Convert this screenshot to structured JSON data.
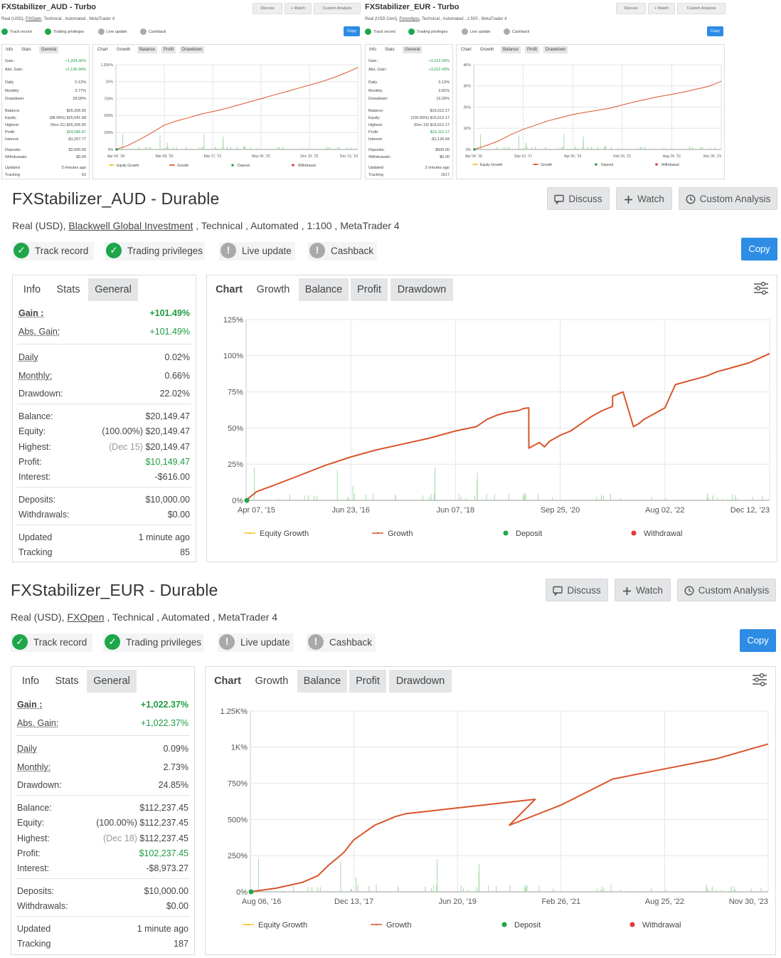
{
  "accounts": [
    {
      "id": "aud_turbo",
      "title": "FXStabilizer_AUD - Turbo",
      "subtitle_prefix": "Real (USD), ",
      "broker": "FXOpen",
      "subtitle_suffix": ", Technical , Automated , MetaTrader 4",
      "buttons": {
        "discuss": "Discuss",
        "watch": "+ Watch",
        "custom": "Custom Analysis",
        "copy": "Copy"
      },
      "badges": [
        "Track record",
        "Trading privileges",
        "Live update",
        "Cashback"
      ],
      "tabs": [
        "Info",
        "Stats",
        "General"
      ],
      "chart_tabs": [
        "Chart",
        "Growth",
        "Balance",
        "Profit",
        "Drawdown"
      ],
      "stats": [
        {
          "label": "Gain :",
          "value": "+1,204.36%"
        },
        {
          "label": "Abs. Gain:",
          "value": "+1,136.34%"
        },
        {
          "label": "Daily",
          "value": "0.12%"
        },
        {
          "label": "Monthly:",
          "value": "3.77%"
        },
        {
          "label": "Drawdown:",
          "value": "29.05%"
        },
        {
          "label": "Balance:",
          "value": "$26,206.55"
        },
        {
          "label": "Equity:",
          "value": "(98.99%) $25,941.68"
        },
        {
          "label": "Highest:",
          "value": "(Nov 21) $26,206.55"
        },
        {
          "label": "Profit:",
          "value": "$24,086.87"
        },
        {
          "label": "Interest:",
          "value": "-$1,257.77"
        },
        {
          "label": "Deposits:",
          "value": "$2,000.00"
        },
        {
          "label": "Withdrawals:",
          "value": "$0.00"
        },
        {
          "label": "Updated",
          "value": "3 minutes ago"
        },
        {
          "label": "Tracking",
          "value": "63"
        }
      ],
      "chart_data": {
        "type": "line",
        "yticks": [
          "0%",
          "250%",
          "500%",
          "750%",
          "1K%",
          "1.25K%"
        ],
        "ylim": [
          0,
          1250
        ],
        "xticks": [
          "Apr 04, '18",
          "Mar 09, '20",
          "Mar 17, '21",
          "May 05, '22",
          "Dec 20, '22",
          "Dec 13, '23"
        ],
        "legend": [
          "Equity Growth",
          "Growth",
          "Deposit",
          "Withdrawal"
        ],
        "series": [
          {
            "name": "Growth",
            "x": [
              0,
              0.05,
              0.1,
              0.15,
              0.2,
              0.25,
              0.3,
              0.35,
              0.4,
              0.45,
              0.5,
              0.55,
              0.6,
              0.65,
              0.7,
              0.75,
              0.8,
              0.85,
              0.9,
              0.95,
              1.0
            ],
            "values": [
              0,
              60,
              150,
              250,
              360,
              420,
              470,
              520,
              560,
              600,
              650,
              700,
              750,
              800,
              850,
              900,
              950,
              1000,
              1060,
              1130,
              1210
            ]
          }
        ]
      }
    },
    {
      "id": "eur_turbo",
      "title": "FXStabilizer_EUR - Turbo",
      "subtitle_prefix": "Real (USD Cent), ",
      "broker": "Forex4you",
      "subtitle_suffix": ", Technical , Automated , 1:500 , MetaTrader 4",
      "buttons": {
        "discuss": "Discuss",
        "watch": "+ Watch",
        "custom": "Custom Analysis",
        "copy": "Copy"
      },
      "badges": [
        "Track record",
        "Trading privileges",
        "Live update",
        "Cashback"
      ],
      "tabs": [
        "Info",
        "Stats",
        "General"
      ],
      "chart_tabs": [
        "Chart",
        "Growth",
        "Balance",
        "Profit",
        "Drawdown"
      ],
      "stats": [
        {
          "label": "Gain :",
          "value": "+3,222.43%"
        },
        {
          "label": "Abs. Gain:",
          "value": "+3,222.43%"
        },
        {
          "label": "Daily",
          "value": "0.12%"
        },
        {
          "label": "Monthly:",
          "value": "3.81%"
        },
        {
          "label": "Drawdown:",
          "value": "13.26%"
        },
        {
          "label": "Balance:",
          "value": "$16,612.17"
        },
        {
          "label": "Equity:",
          "value": "(100.00%) $16,612.17"
        },
        {
          "label": "Highest:",
          "value": "(Dec 19) $16,612.17"
        },
        {
          "label": "Profit:",
          "value": "$16,112.17"
        },
        {
          "label": "Interest:",
          "value": "-$1,126.84"
        },
        {
          "label": "Deposits:",
          "value": "$500.00"
        },
        {
          "label": "Withdrawals:",
          "value": "$0.00"
        },
        {
          "label": "Updated",
          "value": "2 minutes ago"
        },
        {
          "label": "Tracking",
          "value": "1617"
        }
      ],
      "chart_data": {
        "type": "line",
        "yticks": [
          "0%",
          "1K%",
          "2K%",
          "3K%",
          "4K%"
        ],
        "ylim": [
          0,
          4000
        ],
        "xticks": [
          "Apr 04, '16",
          "Sep 10, '17",
          "Apr 05, '19",
          "Feb 16, '21",
          "Aug 24, '22",
          "Nov 30, '23"
        ],
        "legend": [
          "Equity Growth",
          "Growth",
          "Deposit",
          "Withdrawal"
        ],
        "series": [
          {
            "name": "Growth",
            "x": [
              0,
              0.05,
              0.1,
              0.15,
              0.2,
              0.25,
              0.3,
              0.35,
              0.4,
              0.45,
              0.5,
              0.55,
              0.6,
              0.65,
              0.7,
              0.75,
              0.8,
              0.85,
              0.9,
              0.95,
              1.0
            ],
            "values": [
              0,
              180,
              400,
              700,
              950,
              1150,
              1350,
              1500,
              1650,
              1750,
              1850,
              1950,
              2100,
              2250,
              2380,
              2500,
              2600,
              2720,
              2850,
              2980,
              3220
            ]
          }
        ]
      }
    },
    {
      "id": "aud_durable",
      "title": "FXStabilizer_AUD - Durable",
      "subtitle_prefix": "Real (USD), ",
      "broker": "Blackwell Global Investment",
      "subtitle_suffix": " , Technical , Automated , 1:100 , MetaTrader 4",
      "buttons": {
        "discuss": "Discuss",
        "watch": "Watch",
        "custom": "Custom Analysis",
        "copy": "Copy"
      },
      "badges": [
        "Track record",
        "Trading privileges",
        "Live update",
        "Cashback"
      ],
      "tabs": [
        "Info",
        "Stats",
        "General"
      ],
      "chart_tabs": [
        "Chart",
        "Growth",
        "Balance",
        "Profit",
        "Drawdown"
      ],
      "stats": {
        "gain": {
          "label": "Gain :",
          "value": "+101.49%"
        },
        "abs_gain": {
          "label": "Abs. Gain:",
          "value": "+101.49%"
        },
        "daily": {
          "label": "Daily",
          "value": "0.02%"
        },
        "monthly": {
          "label": "Monthly:",
          "value": "0.66%"
        },
        "drawdown": {
          "label": "Drawdown:",
          "value": "22.02%"
        },
        "balance": {
          "label": "Balance:",
          "value": "$20,149.47"
        },
        "equity": {
          "label": "Equity:",
          "pct": "(100.00%)",
          "value": "$20,149.47"
        },
        "highest": {
          "label": "Highest:",
          "date": "(Dec 15)",
          "value": "$20,149.47"
        },
        "profit": {
          "label": "Profit:",
          "value": "$10,149.47"
        },
        "interest": {
          "label": "Interest:",
          "value": "-$616.00"
        },
        "deposits": {
          "label": "Deposits:",
          "value": "$10,000.00"
        },
        "withdrawals": {
          "label": "Withdrawals:",
          "value": "$0.00"
        },
        "updated": {
          "label": "Updated",
          "value": "1 minute ago"
        },
        "tracking": {
          "label": "Tracking",
          "value": "85"
        }
      },
      "chart_data": {
        "type": "line",
        "title": "",
        "yticks": [
          "0%",
          "25%",
          "50%",
          "75%",
          "100%",
          "125%"
        ],
        "ylim": [
          0,
          125
        ],
        "xticks": [
          "Apr 07, '15",
          "Jun 23, '16",
          "Jun 07, '18",
          "Sep 25, '20",
          "Aug 02, '22",
          "Dec 12, '23"
        ],
        "legend": [
          "Equity Growth",
          "Growth",
          "Deposit",
          "Withdrawal"
        ],
        "series": [
          {
            "name": "Growth",
            "x": [
              0,
              0.02,
              0.05,
              0.1,
              0.15,
              0.2,
              0.25,
              0.3,
              0.35,
              0.4,
              0.44,
              0.46,
              0.48,
              0.5,
              0.52,
              0.53,
              0.54,
              0.5401,
              0.55,
              0.56,
              0.57,
              0.58,
              0.6,
              0.62,
              0.64,
              0.66,
              0.68,
              0.7,
              0.7001,
              0.72,
              0.74,
              0.75,
              0.76,
              0.78,
              0.8,
              0.82,
              0.85,
              0.88,
              0.9,
              0.93,
              0.96,
              1.0
            ],
            "values": [
              0,
              6,
              10,
              17,
              24,
              30,
              35,
              39,
              43,
              48,
              51,
              56,
              59,
              61,
              62,
              63.5,
              64,
              36,
              38,
              40,
              37,
              41,
              45,
              48,
              53,
              58,
              62,
              65,
              72,
              75,
              51,
              53,
              56,
              60,
              64,
              80,
              83,
              86,
              89,
              92,
              95,
              101.5
            ]
          }
        ]
      }
    },
    {
      "id": "eur_durable",
      "title": "FXStabilizer_EUR - Durable",
      "subtitle_prefix": "Real (USD), ",
      "broker": "FXOpen",
      "subtitle_suffix": " , Technical , Automated , MetaTrader 4",
      "buttons": {
        "discuss": "Discuss",
        "watch": "Watch",
        "custom": "Custom Analysis",
        "copy": "Copy"
      },
      "badges": [
        "Track record",
        "Trading privileges",
        "Live update",
        "Cashback"
      ],
      "tabs": [
        "Info",
        "Stats",
        "General"
      ],
      "chart_tabs": [
        "Chart",
        "Growth",
        "Balance",
        "Profit",
        "Drawdown"
      ],
      "stats": {
        "gain": {
          "label": "Gain :",
          "value": "+1,022.37%"
        },
        "abs_gain": {
          "label": "Abs. Gain:",
          "value": "+1,022.37%"
        },
        "daily": {
          "label": "Daily",
          "value": "0.09%"
        },
        "monthly": {
          "label": "Monthly:",
          "value": "2.73%"
        },
        "drawdown": {
          "label": "Drawdown:",
          "value": "24.85%"
        },
        "balance": {
          "label": "Balance:",
          "value": "$112,237.45"
        },
        "equity": {
          "label": "Equity:",
          "pct": "(100.00%)",
          "value": "$112,237.45"
        },
        "highest": {
          "label": "Highest:",
          "date": "(Dec 18)",
          "value": "$112,237.45"
        },
        "profit": {
          "label": "Profit:",
          "value": "$102,237.45"
        },
        "interest": {
          "label": "Interest:",
          "value": "-$8,973.27"
        },
        "deposits": {
          "label": "Deposits:",
          "value": "$10,000.00"
        },
        "withdrawals": {
          "label": "Withdrawals:",
          "value": "$0.00"
        },
        "updated": {
          "label": "Updated",
          "value": "1 minute ago"
        },
        "tracking": {
          "label": "Tracking",
          "value": "187"
        }
      },
      "chart_data": {
        "type": "line",
        "title": "",
        "yticks": [
          "0%",
          "250%",
          "500%",
          "750%",
          "1K%",
          "1.25K%"
        ],
        "ylim": [
          0,
          1250
        ],
        "xticks": [
          "Aug 06, '16",
          "Dec 13, '17",
          "Jun 20, '19",
          "Feb 26, '21",
          "Aug 25, '22",
          "Nov 30, '23"
        ],
        "legend": [
          "Equity Growth",
          "Growth",
          "Deposit",
          "Withdrawal"
        ],
        "series": [
          {
            "name": "Growth",
            "x": [
              0,
              0.05,
              0.1,
              0.13,
              0.15,
              0.18,
              0.2,
              0.22,
              0.24,
              0.26,
              0.28,
              0.3,
              0.35,
              0.4,
              0.45,
              0.5,
              0.55,
              0.5,
              0.6,
              0.7,
              0.8,
              0.9,
              1.0
            ],
            "values": [
              0,
              25,
              65,
              110,
              180,
              270,
              360,
              410,
              460,
              490,
              520,
              540,
              560,
              580,
              600,
              620,
              640,
              460,
              600,
              780,
              850,
              920,
              1022
            ]
          }
        ]
      }
    }
  ]
}
